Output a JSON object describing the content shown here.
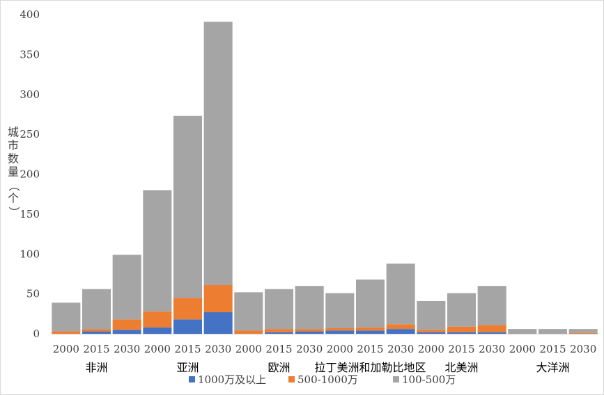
{
  "chart_data": {
    "type": "bar",
    "stacked": true,
    "ylabel": "城市数量（个）",
    "ylim": [
      0,
      400
    ],
    "yticks": [
      0,
      50,
      100,
      150,
      200,
      250,
      300,
      350,
      400
    ],
    "grid": false,
    "legend_position": "bottom",
    "groups": [
      "非洲",
      "亚洲",
      "欧洲",
      "拉丁美洲和加勒比地区",
      "北美洲",
      "大洋洲"
    ],
    "years": [
      "2000",
      "2015",
      "2030"
    ],
    "categories": [
      "2000",
      "2015",
      "2030",
      "2000",
      "2015",
      "2030",
      "2000",
      "2015",
      "2030",
      "2000",
      "2015",
      "2030",
      "2000",
      "2015",
      "2030",
      "2000",
      "2015",
      "2030"
    ],
    "series": [
      {
        "name": "1000万及以上",
        "color": "#4472c4",
        "values": [
          0,
          3,
          5,
          8,
          18,
          27,
          0,
          2,
          3,
          4,
          4,
          6,
          2,
          2,
          2,
          0,
          0,
          0
        ]
      },
      {
        "name": "500-1000万",
        "color": "#ed7d31",
        "values": [
          3,
          3,
          13,
          20,
          27,
          34,
          4,
          4,
          3,
          3,
          4,
          6,
          3,
          7,
          9,
          0,
          0,
          1
        ]
      },
      {
        "name": "100-500万",
        "color": "#a5a5a5",
        "values": [
          36,
          50,
          81,
          152,
          228,
          330,
          48,
          50,
          54,
          44,
          60,
          76,
          36,
          42,
          49,
          6,
          6,
          5
        ]
      }
    ]
  }
}
